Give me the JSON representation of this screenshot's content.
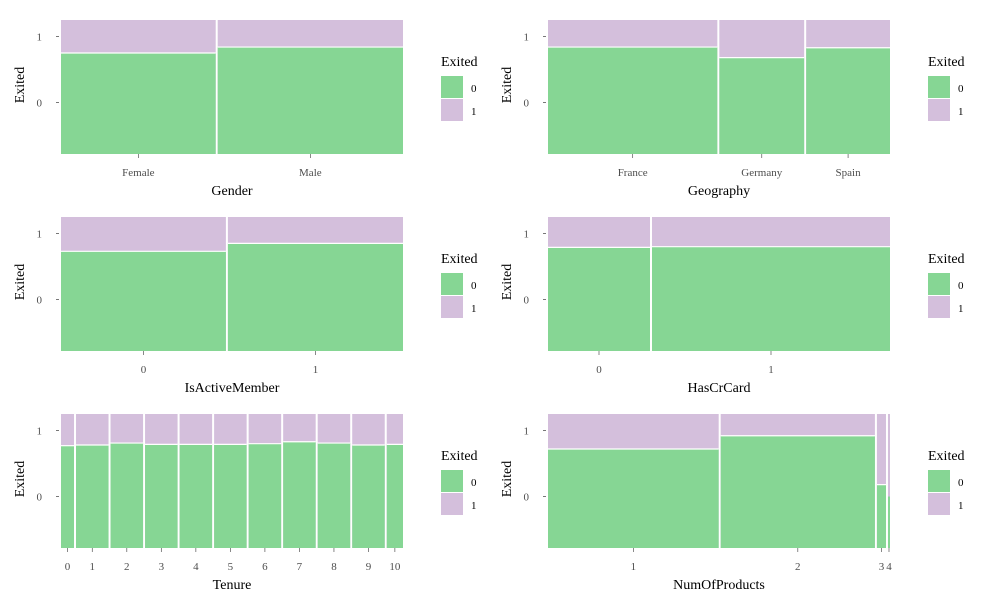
{
  "chart_data": [
    {
      "type": "mosaic",
      "xlabel": "Gender",
      "ylabel": "Exited",
      "y_ticks": [
        "1",
        "0"
      ],
      "legend": {
        "title": "Exited",
        "entries": [
          "0",
          "1"
        ],
        "placement": "right"
      },
      "colors": {
        "0": "#86D694",
        "1": "#D4BFDC"
      },
      "categories": [
        {
          "label": "Female",
          "share": 0.455,
          "stay_proportion": 0.75
        },
        {
          "label": "Male",
          "share": 0.545,
          "stay_proportion": 0.84
        }
      ]
    },
    {
      "type": "mosaic",
      "xlabel": "Geography",
      "ylabel": "Exited",
      "y_ticks": [
        "1",
        "0"
      ],
      "legend": {
        "title": "Exited",
        "entries": [
          "0",
          "1"
        ],
        "placement": "right"
      },
      "colors": {
        "0": "#86D694",
        "1": "#D4BFDC"
      },
      "categories": [
        {
          "label": "France",
          "share": 0.501,
          "stay_proportion": 0.84
        },
        {
          "label": "Germany",
          "share": 0.251,
          "stay_proportion": 0.68
        },
        {
          "label": "Spain",
          "share": 0.248,
          "stay_proportion": 0.83
        }
      ]
    },
    {
      "type": "mosaic",
      "xlabel": "IsActiveMember",
      "ylabel": "Exited",
      "y_ticks": [
        "1",
        "0"
      ],
      "legend": {
        "title": "Exited",
        "entries": [
          "0",
          "1"
        ],
        "placement": "right"
      },
      "colors": {
        "0": "#86D694",
        "1": "#D4BFDC"
      },
      "categories": [
        {
          "label": "0",
          "share": 0.485,
          "stay_proportion": 0.73
        },
        {
          "label": "1",
          "share": 0.515,
          "stay_proportion": 0.85
        }
      ]
    },
    {
      "type": "mosaic",
      "xlabel": "HasCrCard",
      "ylabel": "Exited",
      "y_ticks": [
        "1",
        "0"
      ],
      "legend": {
        "title": "Exited",
        "entries": [
          "0",
          "1"
        ],
        "placement": "right"
      },
      "colors": {
        "0": "#86D694",
        "1": "#D4BFDC"
      },
      "categories": [
        {
          "label": "0",
          "share": 0.3,
          "stay_proportion": 0.79
        },
        {
          "label": "1",
          "share": 0.7,
          "stay_proportion": 0.8
        }
      ]
    },
    {
      "type": "mosaic",
      "xlabel": "Tenure",
      "ylabel": "Exited",
      "y_ticks": [
        "1",
        "0"
      ],
      "legend": {
        "title": "Exited",
        "entries": [
          "0",
          "1"
        ],
        "placement": "right"
      },
      "colors": {
        "0": "#86D694",
        "1": "#D4BFDC"
      },
      "categories": [
        {
          "label": "0",
          "share": 0.04,
          "stay_proportion": 0.77
        },
        {
          "label": "1",
          "share": 0.1,
          "stay_proportion": 0.78
        },
        {
          "label": "2",
          "share": 0.1,
          "stay_proportion": 0.81
        },
        {
          "label": "3",
          "share": 0.1,
          "stay_proportion": 0.79
        },
        {
          "label": "4",
          "share": 0.1,
          "stay_proportion": 0.79
        },
        {
          "label": "5",
          "share": 0.1,
          "stay_proportion": 0.79
        },
        {
          "label": "6",
          "share": 0.1,
          "stay_proportion": 0.8
        },
        {
          "label": "7",
          "share": 0.1,
          "stay_proportion": 0.83
        },
        {
          "label": "8",
          "share": 0.1,
          "stay_proportion": 0.81
        },
        {
          "label": "9",
          "share": 0.1,
          "stay_proportion": 0.78
        },
        {
          "label": "10",
          "share": 0.05,
          "stay_proportion": 0.79
        }
      ]
    },
    {
      "type": "mosaic",
      "xlabel": "NumOfProducts",
      "ylabel": "Exited",
      "y_ticks": [
        "1",
        "0"
      ],
      "legend": {
        "title": "Exited",
        "entries": [
          "0",
          "1"
        ],
        "placement": "right"
      },
      "colors": {
        "0": "#86D694",
        "1": "#D4BFDC"
      },
      "categories": [
        {
          "label": "1",
          "share": 0.508,
          "stay_proportion": 0.72
        },
        {
          "label": "2",
          "share": 0.459,
          "stay_proportion": 0.92
        },
        {
          "label": "3",
          "share": 0.027,
          "stay_proportion": 0.18
        },
        {
          "label": "4",
          "share": 0.006,
          "stay_proportion": 0.0
        }
      ]
    }
  ]
}
